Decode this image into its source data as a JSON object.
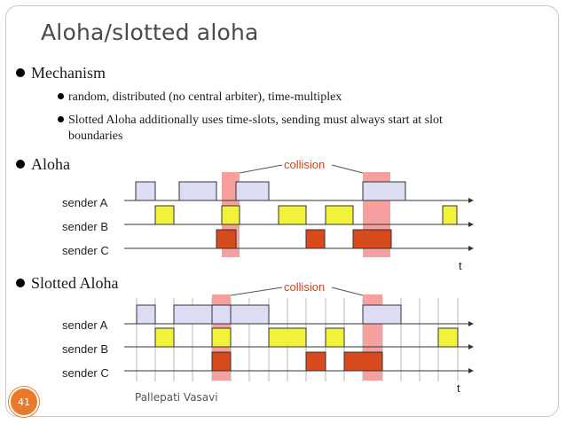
{
  "title": "Aloha/slotted aloha",
  "bullets": {
    "mechanism": "Mechanism",
    "sub1": "random, distributed (no central arbiter), time-multiplex",
    "sub2a": "Slotted Aloha additionally uses time-slots, sending must always start at slot",
    "sub2b": "boundaries",
    "aloha": "Aloha",
    "slotted": "Slotted Aloha"
  },
  "diagram_text": {
    "collision": "collision",
    "sender_a": "sender A",
    "sender_b": "sender B",
    "sender_c": "sender C",
    "time": "t"
  },
  "footer": {
    "author": "Pallepati Vasavi",
    "page": "41"
  },
  "colors": {
    "sender_a": "#dcdcf4",
    "sender_b": "#f2f23a",
    "sender_c": "#d64a1c",
    "collision_band": "#f7a0a0",
    "collision_text": "#e03a1a",
    "accent": "#e87a2a"
  }
}
